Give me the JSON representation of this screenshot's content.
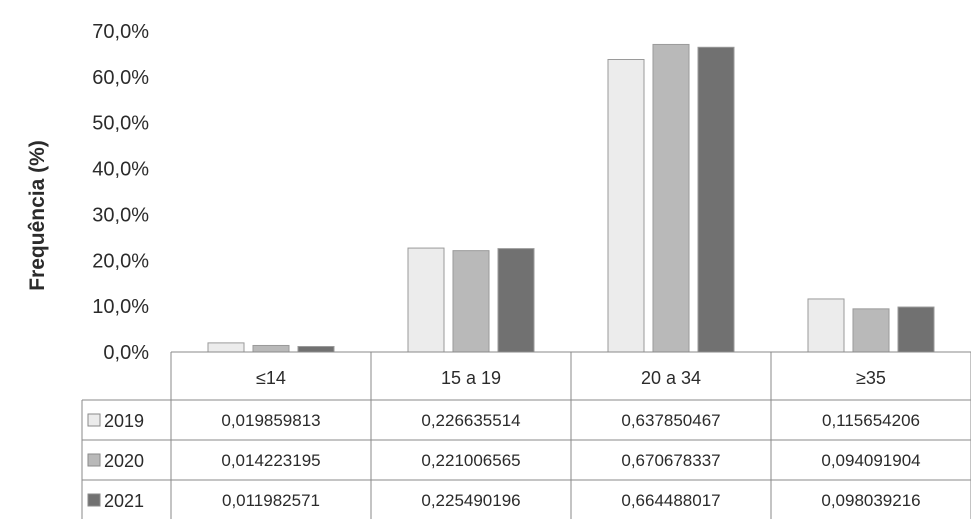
{
  "chart_data": {
    "type": "bar",
    "title": "",
    "xlabel": "",
    "ylabel": "Frequência (%)",
    "ylim": [
      0,
      0.7
    ],
    "yticks": [
      0,
      0.1,
      0.2,
      0.3,
      0.4,
      0.5,
      0.6,
      0.7
    ],
    "ytick_labels": [
      "0,0%",
      "10,0%",
      "20,0%",
      "30,0%",
      "40,0%",
      "50,0%",
      "60,0%",
      "70,0%"
    ],
    "categories": [
      "≤14",
      "15 a 19",
      "20 a 34",
      "≥35"
    ],
    "grid": false,
    "legend": "table",
    "series": [
      {
        "name": "2019",
        "color": "#ececec",
        "values": [
          0.019859813,
          0.226635514,
          0.637850467,
          0.115654206
        ],
        "value_labels": [
          "0,019859813",
          "0,226635514",
          "0,637850467",
          "0,115654206"
        ]
      },
      {
        "name": "2020",
        "color": "#b9b9b9",
        "values": [
          0.014223195,
          0.221006565,
          0.670678337,
          0.094091904
        ],
        "value_labels": [
          "0,014223195",
          "0,221006565",
          "0,670678337",
          "0,094091904"
        ]
      },
      {
        "name": "2021",
        "color": "#717171",
        "values": [
          0.011982571,
          0.225490196,
          0.664488017,
          0.098039216
        ],
        "value_labels": [
          "0,011982571",
          "0,225490196",
          "0,664488017",
          "0,098039216"
        ]
      }
    ]
  }
}
